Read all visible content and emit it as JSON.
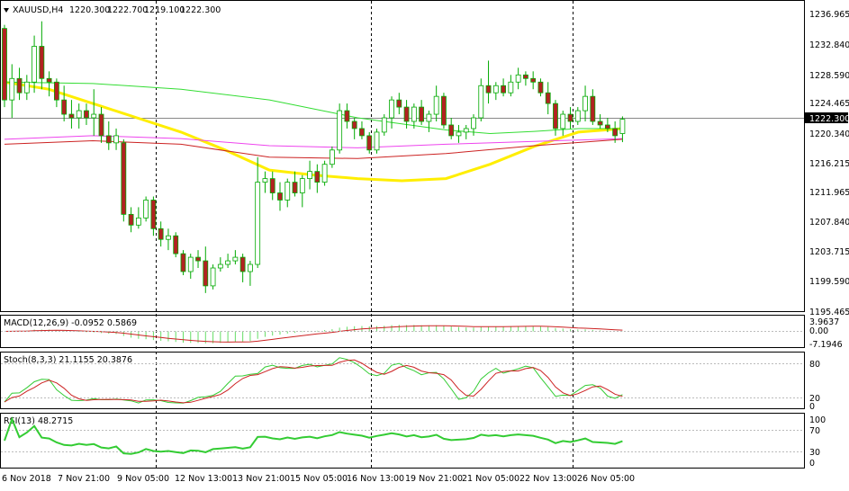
{
  "header": {
    "symbol": "XAUUSD,H4",
    "open": "1220.300",
    "high": "1222.700",
    "low": "1219.100",
    "close": "1222.300"
  },
  "price_axis": {
    "ticks": [
      "1236.965",
      "1232.840",
      "1228.590",
      "1224.465",
      "1220.340",
      "1216.215",
      "1211.965",
      "1207.840",
      "1203.715",
      "1199.590",
      "1195.465"
    ],
    "current_price": "1222.300"
  },
  "macd": {
    "title": "MACD(12,26,9) -0.0952 0.5869",
    "ticks": [
      "3.9637",
      "0.00",
      "-7.1946"
    ]
  },
  "stoch": {
    "title": "Stoch(8,3,3) 21.1155 20.3876",
    "ticks": [
      "80",
      "20",
      "0"
    ]
  },
  "rsi": {
    "title": "RSI(13) 48.2715",
    "ticks": [
      "100",
      "70",
      "30",
      "0"
    ]
  },
  "time_axis": {
    "labels": [
      "6 Nov 2018",
      "7 Nov 21:00",
      "9 Nov 05:00",
      "12 Nov 13:00",
      "13 Nov 21:00",
      "15 Nov 05:00",
      "16 Nov 13:00",
      "19 Nov 21:00",
      "21 Nov 05:00",
      "22 Nov 13:00",
      "26 Nov 05:00"
    ]
  },
  "colors": {
    "bull": "#00a000",
    "bear": "#b22222",
    "ma_yellow": "#ffee00",
    "ma_green": "#33dd33",
    "ma_magenta": "#ee44ee",
    "ma_red": "#cc2222",
    "macd_hist": "#66dd66",
    "macd_signal": "#cc2222",
    "rsi_line": "#33cc33"
  },
  "chart_data": {
    "type": "candlestick",
    "symbol": "XAUUSD",
    "timeframe": "H4",
    "ylim": [
      1195.465,
      1238.0
    ],
    "candles": [
      [
        1235.0,
        1235.5,
        1224.0,
        1225.0
      ],
      [
        1225.0,
        1230.0,
        1222.5,
        1228.0
      ],
      [
        1228.0,
        1229.5,
        1225.0,
        1226.0
      ],
      [
        1226.0,
        1228.5,
        1225.0,
        1227.5
      ],
      [
        1227.5,
        1234.0,
        1226.0,
        1232.5
      ],
      [
        1232.5,
        1236.0,
        1226.5,
        1228.0
      ],
      [
        1228.0,
        1229.0,
        1225.5,
        1227.5
      ],
      [
        1227.5,
        1228.0,
        1224.0,
        1225.0
      ],
      [
        1225.0,
        1227.0,
        1222.0,
        1223.0
      ],
      [
        1223.0,
        1225.0,
        1221.0,
        1222.5
      ],
      [
        1222.5,
        1224.5,
        1221.0,
        1223.5
      ],
      [
        1223.5,
        1224.5,
        1221.5,
        1222.5
      ],
      [
        1222.5,
        1226.5,
        1220.0,
        1223.0
      ],
      [
        1223.0,
        1224.0,
        1219.0,
        1220.0
      ],
      [
        1220.0,
        1222.0,
        1218.0,
        1219.0
      ],
      [
        1219.0,
        1221.0,
        1218.0,
        1220.0
      ],
      [
        1219.0,
        1219.5,
        1208.0,
        1209.0
      ],
      [
        1209.0,
        1210.0,
        1206.5,
        1207.5
      ],
      [
        1207.5,
        1210.0,
        1207.0,
        1208.5
      ],
      [
        1208.5,
        1211.5,
        1208.0,
        1211.0
      ],
      [
        1211.0,
        1211.5,
        1206.0,
        1207.0
      ],
      [
        1207.0,
        1208.0,
        1204.5,
        1205.5
      ],
      [
        1205.5,
        1207.0,
        1204.0,
        1206.0
      ],
      [
        1206.0,
        1206.5,
        1203.0,
        1203.5
      ],
      [
        1203.5,
        1204.0,
        1200.5,
        1201.0
      ],
      [
        1201.0,
        1203.5,
        1200.0,
        1203.0
      ],
      [
        1203.0,
        1204.0,
        1201.5,
        1202.5
      ],
      [
        1202.5,
        1204.5,
        1198.0,
        1199.0
      ],
      [
        1199.0,
        1202.0,
        1198.5,
        1201.5
      ],
      [
        1201.5,
        1203.0,
        1201.0,
        1202.0
      ],
      [
        1202.0,
        1203.5,
        1201.5,
        1202.5
      ],
      [
        1202.5,
        1204.0,
        1202.0,
        1203.0
      ],
      [
        1203.0,
        1203.5,
        1199.5,
        1201.0
      ],
      [
        1201.0,
        1202.5,
        1199.0,
        1202.0
      ],
      [
        1202.0,
        1217.0,
        1201.5,
        1213.5
      ],
      [
        1213.5,
        1215.0,
        1212.0,
        1214.0
      ],
      [
        1214.0,
        1215.0,
        1211.0,
        1212.0
      ],
      [
        1212.0,
        1213.5,
        1209.5,
        1211.0
      ],
      [
        1211.0,
        1214.0,
        1210.0,
        1213.5
      ],
      [
        1213.5,
        1215.0,
        1211.5,
        1212.0
      ],
      [
        1212.0,
        1214.5,
        1210.0,
        1214.0
      ],
      [
        1214.0,
        1216.5,
        1212.5,
        1215.0
      ],
      [
        1215.0,
        1216.0,
        1212.0,
        1213.5
      ],
      [
        1213.5,
        1216.5,
        1213.0,
        1216.0
      ],
      [
        1216.0,
        1218.5,
        1215.5,
        1218.0
      ],
      [
        1218.0,
        1224.5,
        1217.5,
        1223.5
      ],
      [
        1223.5,
        1224.5,
        1221.0,
        1222.0
      ],
      [
        1222.0,
        1222.5,
        1219.5,
        1221.0
      ],
      [
        1221.0,
        1222.0,
        1219.5,
        1220.0
      ],
      [
        1220.0,
        1220.5,
        1217.5,
        1218.0
      ],
      [
        1218.0,
        1221.0,
        1217.5,
        1220.5
      ],
      [
        1220.5,
        1223.0,
        1220.0,
        1222.5
      ],
      [
        1222.5,
        1225.5,
        1221.0,
        1225.0
      ],
      [
        1225.0,
        1226.0,
        1223.0,
        1224.0
      ],
      [
        1224.0,
        1225.0,
        1221.0,
        1222.0
      ],
      [
        1222.0,
        1224.5,
        1221.0,
        1224.0
      ],
      [
        1224.0,
        1225.0,
        1221.5,
        1222.0
      ],
      [
        1222.0,
        1223.5,
        1220.5,
        1223.0
      ],
      [
        1223.0,
        1227.0,
        1222.0,
        1225.5
      ],
      [
        1225.5,
        1226.0,
        1221.0,
        1221.5
      ],
      [
        1221.5,
        1222.5,
        1219.5,
        1220.0
      ],
      [
        1220.0,
        1221.5,
        1219.0,
        1220.5
      ],
      [
        1220.5,
        1221.5,
        1219.5,
        1221.0
      ],
      [
        1221.0,
        1223.0,
        1220.0,
        1222.5
      ],
      [
        1222.5,
        1228.0,
        1222.0,
        1227.0
      ],
      [
        1227.0,
        1230.5,
        1224.5,
        1226.0
      ],
      [
        1226.0,
        1227.5,
        1225.0,
        1227.0
      ],
      [
        1227.0,
        1228.0,
        1225.5,
        1226.0
      ],
      [
        1226.0,
        1228.5,
        1225.5,
        1227.5
      ],
      [
        1227.5,
        1229.5,
        1226.5,
        1228.5
      ],
      [
        1228.5,
        1229.0,
        1227.0,
        1228.0
      ],
      [
        1228.0,
        1229.0,
        1226.5,
        1227.5
      ],
      [
        1227.5,
        1228.0,
        1225.5,
        1226.0
      ],
      [
        1226.0,
        1227.5,
        1223.0,
        1224.5
      ],
      [
        1224.5,
        1225.0,
        1220.0,
        1221.0
      ],
      [
        1221.0,
        1223.5,
        1220.0,
        1223.0
      ],
      [
        1223.0,
        1224.0,
        1221.0,
        1222.0
      ],
      [
        1222.0,
        1224.0,
        1221.5,
        1223.5
      ],
      [
        1223.5,
        1227.0,
        1222.0,
        1225.5
      ],
      [
        1225.5,
        1226.5,
        1221.5,
        1222.0
      ],
      [
        1222.0,
        1223.0,
        1221.0,
        1221.5
      ],
      [
        1221.5,
        1222.5,
        1220.5,
        1221.0
      ],
      [
        1221.0,
        1222.0,
        1219.0,
        1220.0
      ],
      [
        1220.3,
        1222.7,
        1219.1,
        1222.3
      ]
    ],
    "moving_averages": [
      {
        "color": "#ffee00",
        "points": [
          [
            0,
            1227.5
          ],
          [
            10,
            1226.5
          ],
          [
            20,
            1224.5
          ],
          [
            30,
            1222.5
          ],
          [
            40,
            1220.5
          ],
          [
            50,
            1218.0
          ],
          [
            60,
            1215.2
          ],
          [
            70,
            1214.5
          ],
          [
            80,
            1214.0
          ],
          [
            90,
            1213.7
          ],
          [
            100,
            1214.0
          ],
          [
            110,
            1216.0
          ],
          [
            120,
            1218.5
          ],
          [
            130,
            1220.5
          ],
          [
            140,
            1221.0
          ]
        ]
      },
      {
        "color": "#33dd33",
        "points": [
          [
            0,
            1227.5
          ],
          [
            20,
            1227.3
          ],
          [
            40,
            1226.5
          ],
          [
            60,
            1225.0
          ],
          [
            80,
            1222.5
          ],
          [
            100,
            1220.8
          ],
          [
            110,
            1220.3
          ],
          [
            120,
            1220.6
          ],
          [
            130,
            1221.0
          ],
          [
            140,
            1221.0
          ]
        ]
      },
      {
        "color": "#ee44ee",
        "points": [
          [
            0,
            1219.5
          ],
          [
            20,
            1220.0
          ],
          [
            40,
            1219.6
          ],
          [
            60,
            1218.6
          ],
          [
            80,
            1218.3
          ],
          [
            100,
            1218.8
          ],
          [
            120,
            1219.2
          ],
          [
            140,
            1219.6
          ]
        ]
      },
      {
        "color": "#cc2222",
        "points": [
          [
            0,
            1218.8
          ],
          [
            20,
            1219.3
          ],
          [
            40,
            1218.8
          ],
          [
            60,
            1217.0
          ],
          [
            80,
            1216.8
          ],
          [
            100,
            1217.5
          ],
          [
            120,
            1218.6
          ],
          [
            140,
            1219.5
          ]
        ]
      }
    ]
  }
}
